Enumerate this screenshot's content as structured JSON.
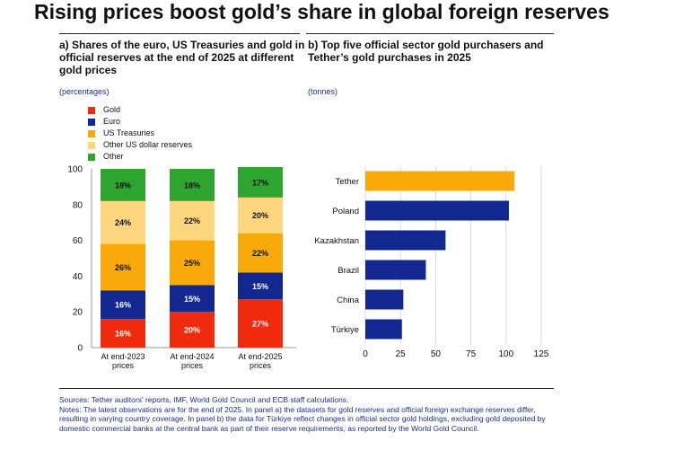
{
  "title": "Rising prices boost gold’s share in global foreign reserves",
  "panel_a": {
    "title": "a) Shares of the euro, US Treasuries and gold in official reserves at the end of 2025 at different gold prices",
    "unit": "(percentages)"
  },
  "panel_b": {
    "title": "b) Top five official sector gold purchasers and Tether’s gold purchases in 2025",
    "unit": "(tonnes)"
  },
  "legend": [
    {
      "label": "Gold",
      "color": "#f02a0c"
    },
    {
      "label": "Euro",
      "color": "#12278f"
    },
    {
      "label": "US Treasuries",
      "color": "#f9a90a"
    },
    {
      "label": "Other US dollar reserves",
      "color": "#fdd67e"
    },
    {
      "label": "Other",
      "color": "#2ea52e"
    }
  ],
  "chart_data": [
    {
      "type": "bar",
      "stacked": true,
      "categories": [
        "At end-2023 prices",
        "At end-2024 prices",
        "At end-2025 prices"
      ],
      "ylim": [
        0,
        100
      ],
      "yticks": [
        0,
        20,
        40,
        60,
        80,
        100
      ],
      "series": [
        {
          "name": "Gold",
          "color": "#f02a0c",
          "values": [
            16,
            20,
            27
          ],
          "labels": [
            "16%",
            "20%",
            "27%"
          ]
        },
        {
          "name": "Euro",
          "color": "#12278f",
          "values": [
            16,
            15,
            15
          ],
          "labels": [
            "16%",
            "15%",
            "15%"
          ]
        },
        {
          "name": "US Treasuries",
          "color": "#f9a90a",
          "values": [
            26,
            25,
            22
          ],
          "labels": [
            "26%",
            "25%",
            "22%"
          ]
        },
        {
          "name": "Other US dollar reserves",
          "color": "#fdd67e",
          "values": [
            24,
            22,
            20
          ],
          "labels": [
            "24%",
            "22%",
            "20%"
          ]
        },
        {
          "name": "Other",
          "color": "#2ea52e",
          "values": [
            18,
            18,
            17
          ],
          "labels": [
            "18%",
            "18%",
            "17%"
          ]
        }
      ]
    },
    {
      "type": "bar",
      "orientation": "horizontal",
      "categories": [
        "Tether",
        "Poland",
        "Kazakhstan",
        "Brazil",
        "China",
        "Türkiye"
      ],
      "values": [
        106,
        102,
        57,
        43,
        27,
        26
      ],
      "colors": [
        "#f9a90a",
        "#12278f",
        "#12278f",
        "#12278f",
        "#12278f",
        "#12278f"
      ],
      "xlim": [
        0,
        125
      ],
      "xticks": [
        0,
        25,
        50,
        75,
        100,
        125
      ],
      "grid": true
    }
  ],
  "notes": {
    "sources": "Sources: Tether auditors' reports, IMF, World Gold Council and ECB staff calculations.",
    "text": "Notes: The latest observations are for the end of 2025. In panel a) the datasets for gold reserves and official foreign exchange reserves differ, resulting in varying country coverage. In panel b) the data for Türkiye reflect changes in official sector gold holdings, excluding gold deposited by domestic commercial banks at the central bank as part of their reserve requirements, as reported by the World Gold Council."
  }
}
